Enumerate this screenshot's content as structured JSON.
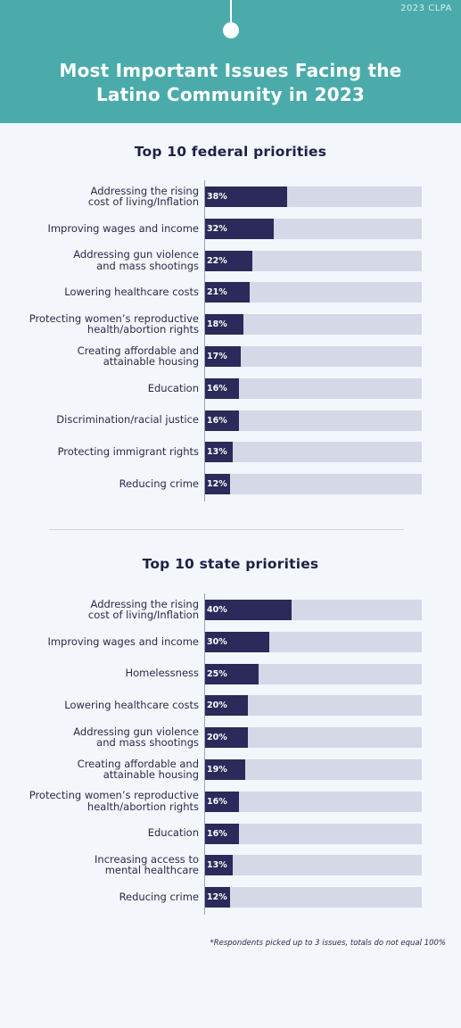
{
  "header": {
    "brand": "2023 CLPA",
    "title_line1": "Most Important Issues Facing the",
    "title_line2": "Latino Community in 2023"
  },
  "footnote": "*Respondents picked up to 3 issues, totals do not equal 100%",
  "colors": {
    "header_bg": "#4aabaa",
    "bar_fill": "#2b2a5a",
    "bar_track": "#d5d8e6",
    "page_bg": "#f3f6fb"
  },
  "chart_data": [
    {
      "type": "bar",
      "orientation": "horizontal",
      "title": "Top 10 federal priorities",
      "unit": "%",
      "xlim": [
        0,
        100
      ],
      "categories": [
        [
          "Addressing the rising",
          "cost of living/Inflation"
        ],
        [
          "Improving wages and income"
        ],
        [
          "Addressing gun violence",
          "and mass shootings"
        ],
        [
          "Lowering healthcare costs"
        ],
        [
          "Protecting women’s reproductive",
          "health/abortion rights"
        ],
        [
          "Creating affordable and",
          "attainable housing"
        ],
        [
          "Education"
        ],
        [
          "Discrimination/racial justice"
        ],
        [
          "Protecting immigrant rights"
        ],
        [
          "Reducing crime"
        ]
      ],
      "values": [
        38,
        32,
        22,
        21,
        18,
        17,
        16,
        16,
        13,
        12
      ],
      "labels": [
        "38%",
        "32%",
        "22%",
        "21%",
        "18%",
        "17%",
        "16%",
        "16%",
        "13%",
        "12%"
      ]
    },
    {
      "type": "bar",
      "orientation": "horizontal",
      "title": "Top 10 state priorities",
      "unit": "%",
      "xlim": [
        0,
        100
      ],
      "categories": [
        [
          "Addressing the rising",
          "cost of living/Inflation"
        ],
        [
          "Improving wages and income"
        ],
        [
          "Homelessness"
        ],
        [
          "Lowering healthcare costs"
        ],
        [
          "Addressing gun violence",
          "and mass shootings"
        ],
        [
          "Creating affordable and",
          "attainable housing"
        ],
        [
          "Protecting women’s reproductive",
          "health/abortion rights"
        ],
        [
          "Education"
        ],
        [
          "Increasing access to",
          "mental healthcare"
        ],
        [
          "Reducing crime"
        ]
      ],
      "values": [
        40,
        30,
        25,
        20,
        20,
        19,
        16,
        16,
        13,
        12
      ],
      "labels": [
        "40%",
        "30%",
        "25%",
        "20%",
        "20%",
        "19%",
        "16%",
        "16%",
        "13%",
        "12%"
      ]
    }
  ]
}
